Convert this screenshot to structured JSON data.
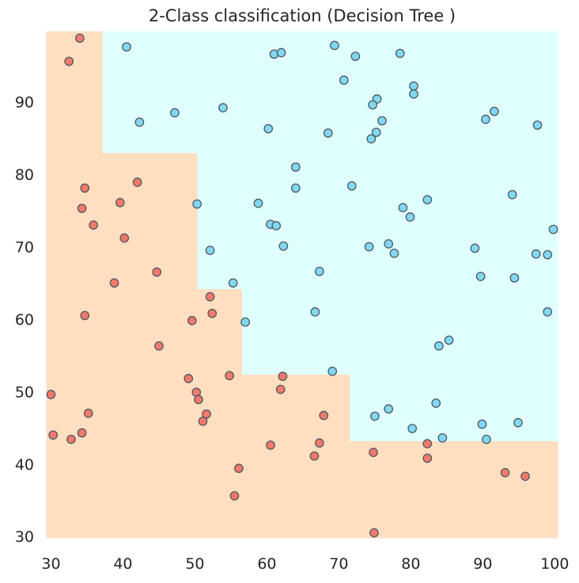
{
  "chart_data": {
    "type": "scatter",
    "title": "2-Class classification (Decision Tree )",
    "xlabel": "",
    "ylabel": "",
    "xlim": [
      29.4,
      100.4
    ],
    "ylim": [
      29.8,
      99.7
    ],
    "xticks": [
      30,
      40,
      50,
      60,
      70,
      80,
      90,
      100
    ],
    "yticks": [
      30,
      40,
      50,
      60,
      70,
      80,
      90
    ],
    "grid": false,
    "legend": "none",
    "colors": {
      "region_0": "#ffdfc0",
      "region_1": "#e0ffff",
      "class_0": "#f3796b",
      "class_1": "#82d8f2",
      "marker_edge": "#4d5961"
    },
    "decision_regions": [
      {
        "class": 0,
        "x": [
          29.4,
          37.2
        ],
        "y": [
          29.8,
          99.7
        ]
      },
      {
        "class": 0,
        "x": [
          37.2,
          50.4
        ],
        "y": [
          29.8,
          83.0
        ]
      },
      {
        "class": 0,
        "x": [
          50.4,
          56.6
        ],
        "y": [
          29.8,
          64.2
        ]
      },
      {
        "class": 0,
        "x": [
          56.6,
          71.6
        ],
        "y": [
          29.8,
          52.4
        ]
      },
      {
        "class": 0,
        "x": [
          71.6,
          100.4
        ],
        "y": [
          29.8,
          43.2
        ]
      },
      {
        "class": 1,
        "x": [
          37.2,
          100.4
        ],
        "y": [
          83.0,
          99.7
        ]
      },
      {
        "class": 1,
        "x": [
          50.4,
          100.4
        ],
        "y": [
          64.2,
          83.0
        ]
      },
      {
        "class": 1,
        "x": [
          56.6,
          100.4
        ],
        "y": [
          52.4,
          64.2
        ]
      },
      {
        "class": 1,
        "x": [
          71.6,
          100.4
        ],
        "y": [
          43.2,
          52.4
        ]
      }
    ],
    "series": [
      {
        "class": 0,
        "points": [
          [
            34.0,
            98.8
          ],
          [
            32.5,
            95.6
          ],
          [
            34.7,
            78.1
          ],
          [
            34.3,
            75.3
          ],
          [
            35.9,
            73.0
          ],
          [
            42.0,
            78.9
          ],
          [
            39.6,
            76.1
          ],
          [
            40.2,
            71.2
          ],
          [
            38.8,
            65.0
          ],
          [
            44.7,
            66.5
          ],
          [
            34.7,
            60.5
          ],
          [
            45.0,
            56.3
          ],
          [
            30.0,
            49.6
          ],
          [
            35.2,
            47.0
          ],
          [
            30.3,
            44.0
          ],
          [
            34.3,
            44.3
          ],
          [
            32.8,
            43.4
          ],
          [
            52.1,
            63.1
          ],
          [
            52.4,
            60.8
          ],
          [
            49.6,
            59.8
          ],
          [
            49.1,
            51.8
          ],
          [
            50.2,
            49.9
          ],
          [
            50.5,
            48.9
          ],
          [
            51.6,
            46.9
          ],
          [
            51.1,
            45.9
          ],
          [
            54.8,
            52.2
          ],
          [
            62.2,
            52.1
          ],
          [
            61.9,
            50.3
          ],
          [
            56.1,
            39.4
          ],
          [
            55.5,
            35.6
          ],
          [
            60.5,
            42.6
          ],
          [
            67.9,
            46.7
          ],
          [
            67.3,
            42.9
          ],
          [
            66.6,
            41.1
          ],
          [
            74.8,
            41.6
          ],
          [
            74.9,
            30.5
          ],
          [
            82.3,
            42.8
          ],
          [
            82.3,
            40.8
          ],
          [
            93.1,
            38.8
          ],
          [
            95.9,
            38.3
          ]
        ]
      },
      {
        "class": 1,
        "points": [
          [
            40.5,
            97.6
          ],
          [
            61.0,
            96.6
          ],
          [
            62.0,
            96.8
          ],
          [
            69.4,
            97.8
          ],
          [
            72.3,
            96.3
          ],
          [
            78.5,
            96.7
          ],
          [
            70.7,
            93.0
          ],
          [
            80.4,
            92.2
          ],
          [
            80.4,
            91.1
          ],
          [
            75.3,
            90.4
          ],
          [
            74.7,
            89.6
          ],
          [
            76.0,
            87.4
          ],
          [
            75.2,
            85.8
          ],
          [
            74.5,
            84.9
          ],
          [
            42.3,
            87.2
          ],
          [
            47.2,
            88.5
          ],
          [
            53.9,
            89.2
          ],
          [
            60.2,
            86.3
          ],
          [
            68.5,
            85.7
          ],
          [
            90.4,
            87.6
          ],
          [
            91.6,
            88.7
          ],
          [
            97.6,
            86.8
          ],
          [
            64.0,
            81.0
          ],
          [
            64.0,
            78.1
          ],
          [
            71.8,
            78.4
          ],
          [
            58.8,
            76.0
          ],
          [
            50.3,
            75.9
          ],
          [
            60.5,
            73.1
          ],
          [
            61.3,
            72.9
          ],
          [
            62.3,
            70.1
          ],
          [
            52.1,
            69.5
          ],
          [
            78.9,
            75.4
          ],
          [
            79.9,
            74.1
          ],
          [
            82.3,
            76.5
          ],
          [
            76.9,
            70.4
          ],
          [
            77.7,
            69.1
          ],
          [
            74.2,
            70.0
          ],
          [
            94.1,
            77.2
          ],
          [
            88.9,
            69.8
          ],
          [
            97.4,
            69.0
          ],
          [
            99.0,
            68.9
          ],
          [
            99.8,
            72.4
          ],
          [
            89.7,
            65.9
          ],
          [
            94.4,
            65.7
          ],
          [
            67.3,
            66.6
          ],
          [
            55.3,
            65.0
          ],
          [
            57.0,
            59.6
          ],
          [
            66.7,
            61.0
          ],
          [
            99.0,
            61.0
          ],
          [
            83.9,
            56.3
          ],
          [
            85.3,
            57.1
          ],
          [
            69.1,
            52.8
          ],
          [
            83.5,
            48.4
          ],
          [
            76.9,
            47.6
          ],
          [
            75.0,
            46.6
          ],
          [
            80.2,
            44.9
          ],
          [
            84.4,
            43.6
          ],
          [
            89.9,
            45.5
          ],
          [
            90.5,
            43.4
          ],
          [
            94.9,
            45.7
          ]
        ]
      }
    ]
  }
}
